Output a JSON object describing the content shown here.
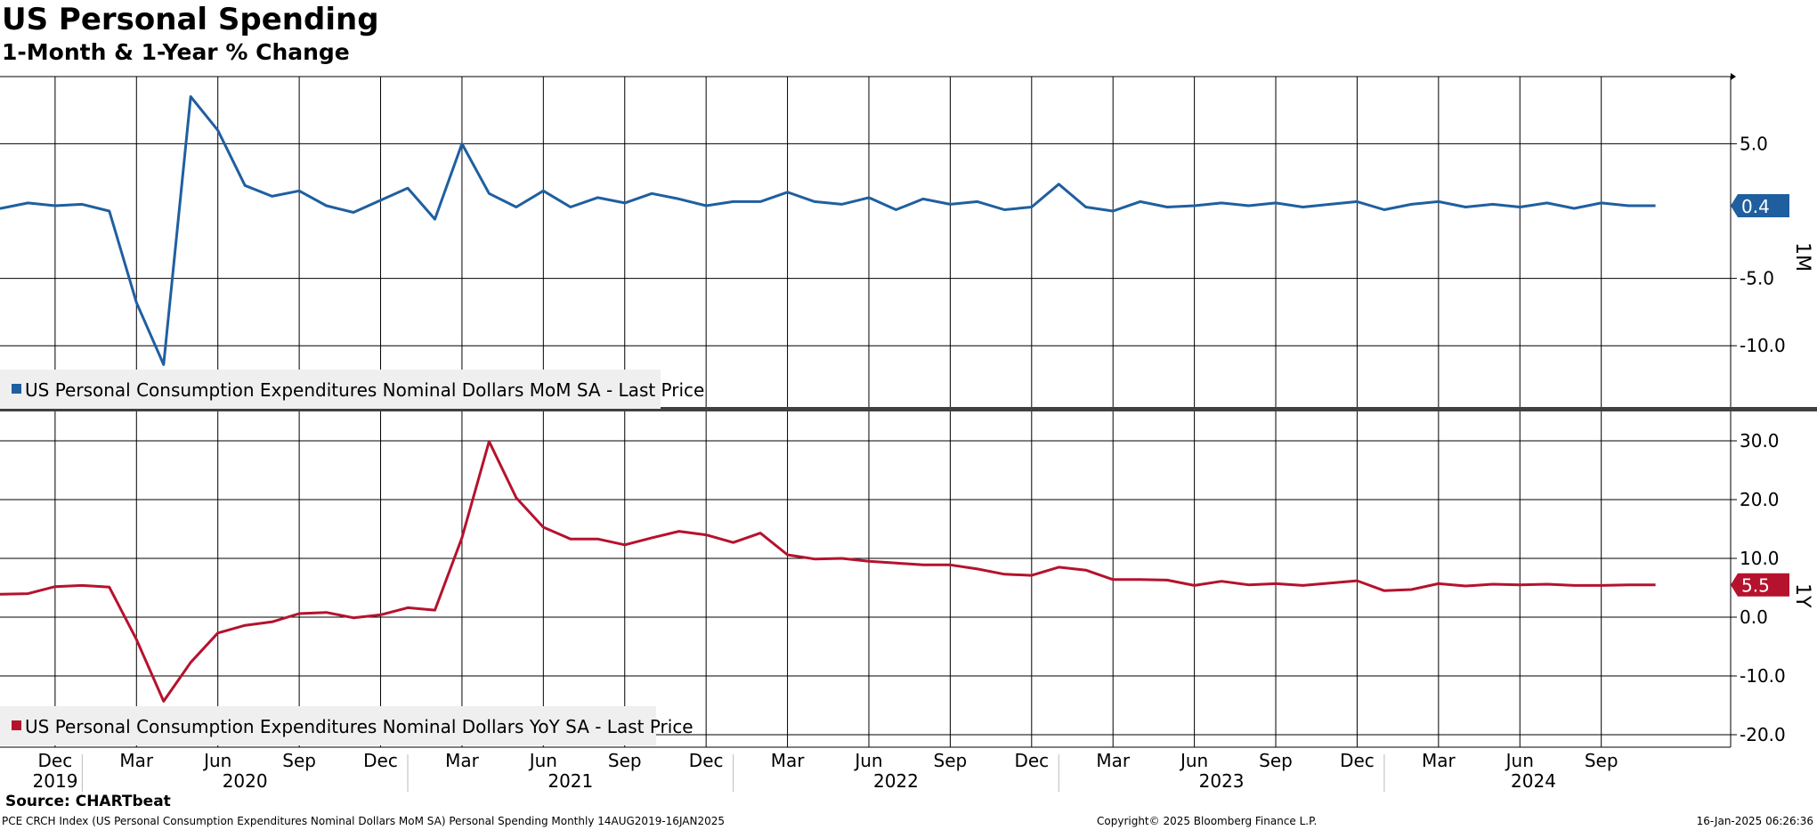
{
  "title": "US Personal Spending",
  "subtitle": "1-Month & 1-Year % Change",
  "source": "Source: CHARTbeat",
  "footnote_left": "PCE CRCH Index (US Personal Consumption Expenditures Nominal Dollars MoM SA) Personal Spending  Monthly 14AUG2019-16JAN2025",
  "footnote_center": "Copyright© 2025 Bloomberg Finance L.P.",
  "footnote_right": "16-Jan-2025 06:26:36",
  "chart_data": {
    "type": "line",
    "x": [
      "2019-08",
      "2019-09",
      "2019-10",
      "2019-11",
      "2019-12",
      "2020-01",
      "2020-02",
      "2020-03",
      "2020-04",
      "2020-05",
      "2020-06",
      "2020-07",
      "2020-08",
      "2020-09",
      "2020-10",
      "2020-11",
      "2020-12",
      "2021-01",
      "2021-02",
      "2021-03",
      "2021-04",
      "2021-05",
      "2021-06",
      "2021-07",
      "2021-08",
      "2021-09",
      "2021-10",
      "2021-11",
      "2021-12",
      "2022-01",
      "2022-02",
      "2022-03",
      "2022-04",
      "2022-05",
      "2022-06",
      "2022-07",
      "2022-08",
      "2022-09",
      "2022-10",
      "2022-11",
      "2022-12",
      "2023-01",
      "2023-02",
      "2023-03",
      "2023-04",
      "2023-05",
      "2023-06",
      "2023-07",
      "2023-08",
      "2023-09",
      "2023-10",
      "2023-11",
      "2023-12",
      "2024-01",
      "2024-02",
      "2024-03",
      "2024-04",
      "2024-05",
      "2024-06",
      "2024-07",
      "2024-08",
      "2024-09",
      "2024-10",
      "2024-11"
    ],
    "x_month_labels": [
      "Sep",
      "Dec",
      "Mar",
      "Jun",
      "Sep",
      "Dec",
      "Mar",
      "Jun",
      "Sep",
      "Dec",
      "Mar",
      "Jun",
      "Sep",
      "Dec",
      "Mar",
      "Jun",
      "Sep",
      "Dec",
      "Mar",
      "Jun",
      "Sep"
    ],
    "x_year_labels": [
      "2019",
      "2020",
      "2021",
      "2022",
      "2023",
      "2024"
    ],
    "panels": [
      {
        "id": "1M",
        "axis_label": "1M",
        "legend": "US Personal Consumption Expenditures Nominal Dollars MoM SA - Last Price",
        "color": "#1f5fa0",
        "ylim": [
          -11.5,
          10.0
        ],
        "yticks": [
          5.0,
          -5.0,
          -10.0
        ],
        "ytick_labels": [
          "5.0",
          "-5.0",
          "-10.0"
        ],
        "last_value": "0.4",
        "series": [
          {
            "values": [
              0.5,
              0.2,
              0.2,
              0.6,
              0.4,
              0.5,
              0.0,
              -6.8,
              -11.4,
              8.5,
              6.0,
              1.9,
              1.1,
              1.5,
              0.4,
              -0.1,
              0.8,
              1.7,
              -0.6,
              5.0,
              1.3,
              0.3,
              1.5,
              0.3,
              1.0,
              0.6,
              1.3,
              0.9,
              0.4,
              0.7,
              0.7,
              1.4,
              0.7,
              0.5,
              1.0,
              0.1,
              0.9,
              0.5,
              0.7,
              0.1,
              0.3,
              2.0,
              0.3,
              0.0,
              0.7,
              0.3,
              0.4,
              0.6,
              0.4,
              0.6,
              0.3,
              0.5,
              0.7,
              0.1,
              0.5,
              0.7,
              0.3,
              0.5,
              0.3,
              0.6,
              0.2,
              0.6,
              0.4,
              0.4
            ]
          }
        ]
      },
      {
        "id": "1Y",
        "axis_label": "1Y",
        "legend": "US Personal Consumption Expenditures Nominal Dollars YoY SA - Last Price",
        "color": "#b5122e",
        "ylim": [
          -20.0,
          31.0
        ],
        "yticks": [
          30.0,
          20.0,
          10.0,
          0.0,
          -10.0,
          -20.0
        ],
        "ytick_labels": [
          "30.0",
          "20.0",
          "10.0",
          "0.0",
          "-10.0",
          "-20.0"
        ],
        "last_value": "5.5",
        "series": [
          {
            "values": [
              4.0,
              4.2,
              3.9,
              4.0,
              5.2,
              5.4,
              5.1,
              -3.8,
              -14.3,
              -7.7,
              -2.7,
              -1.4,
              -0.8,
              0.6,
              0.8,
              -0.1,
              0.4,
              1.6,
              1.2,
              13.5,
              29.9,
              20.3,
              15.3,
              13.3,
              13.3,
              12.3,
              13.5,
              14.6,
              14.0,
              12.7,
              14.3,
              10.6,
              9.9,
              10.0,
              9.5,
              9.2,
              8.9,
              8.9,
              8.2,
              7.3,
              7.1,
              8.5,
              8.0,
              6.4,
              6.4,
              6.3,
              5.4,
              6.1,
              5.5,
              5.7,
              5.4,
              5.8,
              6.2,
              4.5,
              4.7,
              5.7,
              5.3,
              5.6,
              5.5,
              5.6,
              5.4,
              5.4,
              5.5,
              5.5
            ]
          }
        ]
      }
    ],
    "grid": true,
    "legend_placement": "bottom-left"
  }
}
